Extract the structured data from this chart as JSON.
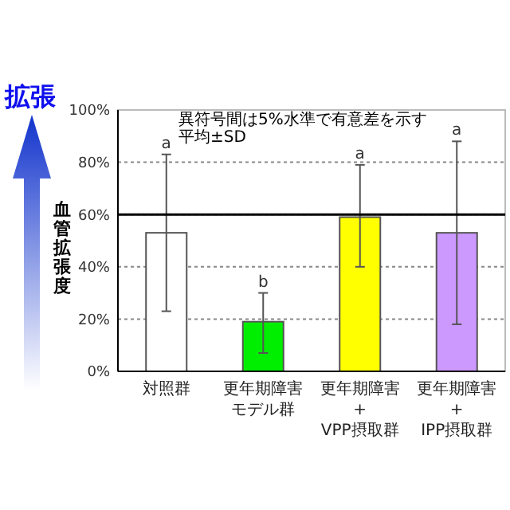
{
  "chart_data": {
    "type": "bar",
    "ylabel": "血管拡張度",
    "categories": [
      "対照群",
      "更年期障害モデル群",
      "更年期障害\n+\nVPP摂取群",
      "更年期障害\n+\nIPP摂取群"
    ],
    "values": [
      53,
      19,
      59,
      53
    ],
    "colors": [
      "#ffffff",
      "#00ee00",
      "#ffff00",
      "#cc99ff"
    ],
    "errors": [
      [
        23,
        83
      ],
      [
        7,
        30
      ],
      [
        40,
        79
      ],
      [
        18,
        88
      ]
    ],
    "ylim": [
      0,
      100
    ],
    "yticks": [
      {
        "value": 0,
        "label": "0%"
      },
      {
        "value": 20,
        "label": "20%"
      },
      {
        "value": 40,
        "label": "40%"
      },
      {
        "value": 60,
        "label": "60%"
      },
      {
        "value": 80,
        "label": "80%"
      },
      {
        "value": 100,
        "label": "100%"
      }
    ],
    "grid": "y",
    "ref_lines": [
      {
        "axis": "y",
        "value": 60,
        "color": "#000000"
      }
    ],
    "annotations": [
      "拡張",
      "異符号間は5%水準で有意差を示す",
      "平均±SD",
      {
        "text": "a",
        "x": "対照群",
        "y": 83
      },
      {
        "text": "b",
        "x": "更年期障害モデル群",
        "y": 30
      },
      {
        "text": "a",
        "x": "更年期障害\n+\nVPP摂取群",
        "y": 79
      },
      {
        "text": "a",
        "x": "更年期障害\n+\nIPP摂取群",
        "y": 88
      }
    ]
  }
}
